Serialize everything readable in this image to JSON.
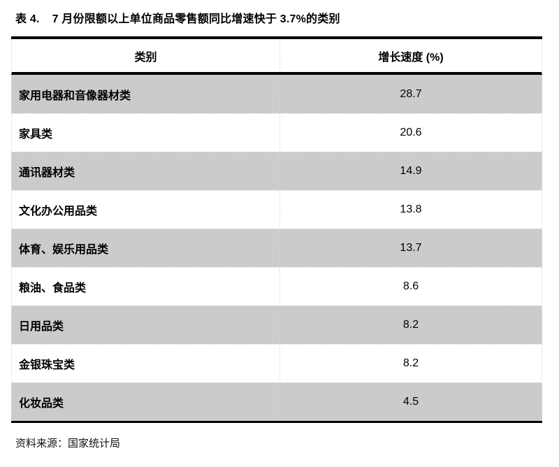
{
  "page": {
    "title_label": "表 4.",
    "title_text": "7 月份限额以上单位商品零售额同比增速快于 3.7%的类别",
    "source_note": "资料来源：国家统计局"
  },
  "table": {
    "headers": [
      "类别",
      "增长速度 (%)"
    ],
    "rows": [
      {
        "category": "家用电器和音像器材类",
        "value": "28.7"
      },
      {
        "category": "家具类",
        "value": "20.6"
      },
      {
        "category": "通讯器材类",
        "value": "14.9"
      },
      {
        "category": "文化办公用品类",
        "value": "13.8"
      },
      {
        "category": "体育、娱乐用品类",
        "value": "13.7"
      },
      {
        "category": "粮油、食品类",
        "value": "8.6"
      },
      {
        "category": "日用品类",
        "value": "8.2"
      },
      {
        "category": "金银珠宝类",
        "value": "8.2"
      },
      {
        "category": "化妆品类",
        "value": "4.5"
      }
    ],
    "colors": {
      "zebra_row_bg": "#cbcbcb",
      "plain_row_bg": "#ffffff",
      "heavy_border": "#000000",
      "dashed_grid": "#d9d9d9"
    }
  },
  "chart_data": {
    "type": "table",
    "title": "表 4. 7 月份限额以上单位商品零售额同比增速快于 3.7%的类别",
    "columns": [
      "类别",
      "增长速度 (%)"
    ],
    "categories": [
      "家用电器和音像器材类",
      "家具类",
      "通讯器材类",
      "文化办公用品类",
      "体育、娱乐用品类",
      "粮油、食品类",
      "日用品类",
      "金银珠宝类",
      "化妆品类"
    ],
    "values": [
      28.7,
      20.6,
      14.9,
      13.8,
      13.7,
      8.6,
      8.2,
      8.2,
      4.5
    ],
    "source": "资料来源：国家统计局"
  }
}
